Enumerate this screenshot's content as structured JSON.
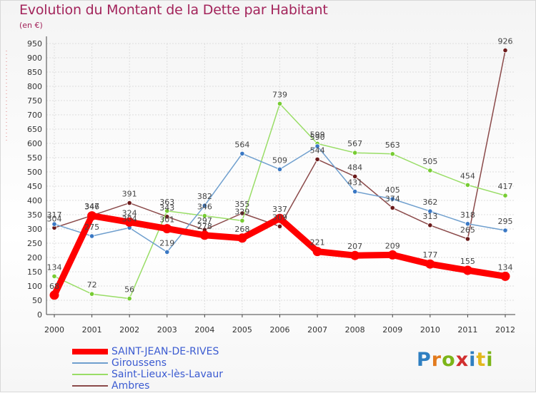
{
  "header": {
    "title": "Evolution du Montant de la Dette par Habitant",
    "subtitle": "(en €)"
  },
  "logo": {
    "text": "Proxiti"
  },
  "chart_data": {
    "type": "line",
    "title": "Evolution du Montant de la Dette par Habitant",
    "subtitle": "(en €)",
    "xlabel": "",
    "ylabel": "",
    "x": [
      "2000",
      "2001",
      "2002",
      "2003",
      "2004",
      "2005",
      "2006",
      "2007",
      "2008",
      "2009",
      "2010",
      "2011",
      "2012"
    ],
    "ylim": [
      0,
      950
    ],
    "yticks": [
      0,
      50,
      100,
      150,
      200,
      250,
      300,
      350,
      400,
      450,
      500,
      550,
      600,
      650,
      700,
      750,
      800,
      850,
      900,
      950
    ],
    "grid": true,
    "legend_position": "bottom-left",
    "series": [
      {
        "name": "SAINT-JEAN-DE-RIVES",
        "color": "#ff0000",
        "marker_color": "#ff0000",
        "values": [
          68,
          346,
          324,
          301,
          278,
          268,
          337,
          221,
          207,
          209,
          177,
          155,
          134
        ],
        "labels": [
          "68",
          "346",
          "324",
          "301",
          "278",
          "268",
          "337",
          "221",
          "207",
          "209",
          "177",
          "155",
          "134"
        ]
      },
      {
        "name": "Giroussens",
        "color": "#6f9fce",
        "marker_color": "#3a78c4",
        "values": [
          317,
          275,
          304,
          219,
          382,
          564,
          509,
          590,
          431,
          405,
          362,
          318,
          295
        ],
        "labels": [
          "317",
          "275",
          "304",
          "219",
          "382",
          "564",
          "509",
          "590",
          "431",
          "405",
          "362",
          "318",
          "295"
        ]
      },
      {
        "name": "Saint-Lieux-lès-Lavaur",
        "color": "#99dd66",
        "marker_color": "#77cc33",
        "values": [
          134,
          72,
          56,
          363,
          346,
          329,
          739,
          599,
          567,
          563,
          505,
          454,
          417
        ],
        "labels": [
          "134",
          "72",
          "56",
          "363",
          "346",
          "329",
          "739",
          "599",
          "567",
          "563",
          "505",
          "454",
          "417"
        ]
      },
      {
        "name": "Ambres",
        "color": "#8b4a4a",
        "marker_color": "#6b1a1a",
        "values": [
          304,
          347,
          391,
          343,
          297,
          355,
          309,
          544,
          484,
          374,
          313,
          265,
          926
        ],
        "labels": [
          "304",
          "347",
          "391",
          "343",
          "297",
          "355",
          "309",
          "544",
          "484",
          "374",
          "313",
          "265",
          "926"
        ]
      }
    ]
  }
}
